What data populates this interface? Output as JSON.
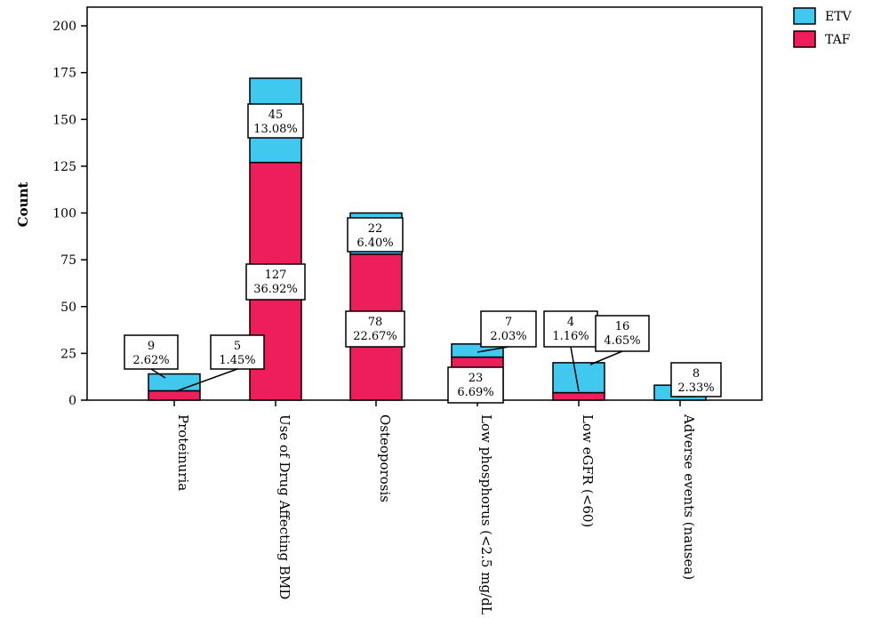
{
  "chart_data": {
    "type": "bar",
    "stacked": true,
    "ylabel": "Count",
    "xlabel": "",
    "ylim": [
      0,
      210
    ],
    "yticks": [
      "0",
      "25",
      "50",
      "75",
      "100",
      "125",
      "150",
      "175",
      "200"
    ],
    "grid": false,
    "legend": {
      "placement": "top-right",
      "entries": [
        "ETV",
        "TAF"
      ]
    },
    "colors": {
      "ETV": "#40c8ee",
      "TAF": "#ee1e5a"
    },
    "categories": [
      "Proteinuria",
      "Use of Drug Affecting BMD",
      "Osteoporosis",
      "Low phosphorus (<2.5 mg/dL)",
      "Low eGFR (<60)",
      "Adverse events (nausea)"
    ],
    "series": [
      {
        "name": "TAF",
        "values": [
          5,
          127,
          78,
          23,
          4,
          0
        ]
      },
      {
        "name": "ETV",
        "values": [
          9,
          45,
          22,
          7,
          16,
          8
        ]
      }
    ],
    "annotations": [
      {
        "category": 0,
        "series": "ETV",
        "count": "9",
        "percent": "2.62%"
      },
      {
        "category": 0,
        "series": "TAF",
        "count": "5",
        "percent": "1.45%"
      },
      {
        "category": 1,
        "series": "ETV",
        "count": "45",
        "percent": "13.08%"
      },
      {
        "category": 1,
        "series": "TAF",
        "count": "127",
        "percent": "36.92%"
      },
      {
        "category": 2,
        "series": "ETV",
        "count": "22",
        "percent": "6.40%"
      },
      {
        "category": 2,
        "series": "TAF",
        "count": "78",
        "percent": "22.67%"
      },
      {
        "category": 3,
        "series": "ETV",
        "count": "7",
        "percent": "2.03%"
      },
      {
        "category": 3,
        "series": "TAF",
        "count": "23",
        "percent": "6.69%"
      },
      {
        "category": 4,
        "series": "TAF",
        "count": "4",
        "percent": "1.16%"
      },
      {
        "category": 4,
        "series": "ETV",
        "count": "16",
        "percent": "4.65%"
      },
      {
        "category": 5,
        "series": "ETV",
        "count": "8",
        "percent": "2.33%"
      }
    ]
  }
}
